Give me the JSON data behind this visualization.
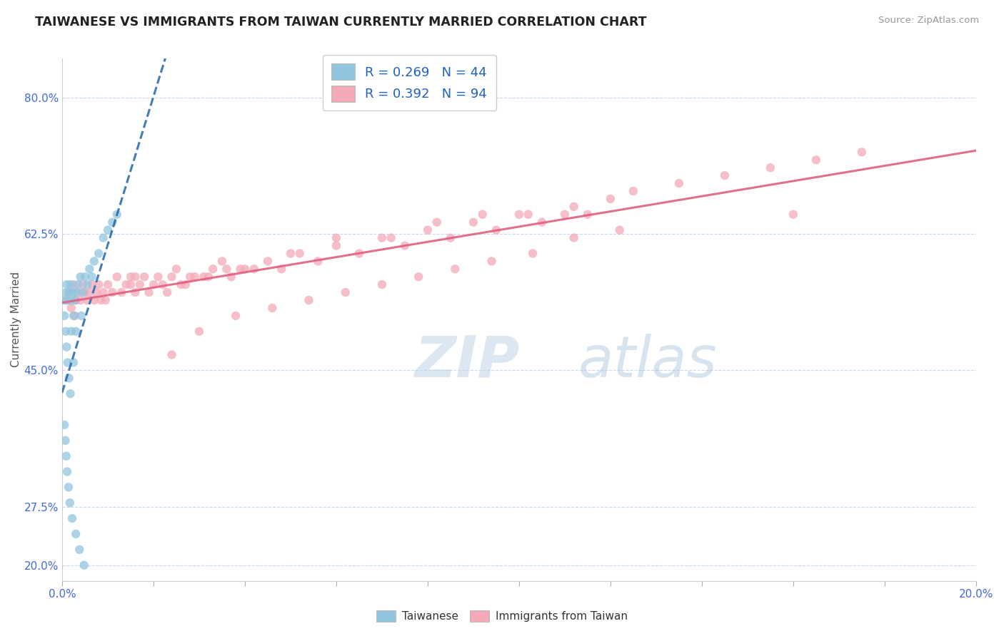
{
  "title": "TAIWANESE VS IMMIGRANTS FROM TAIWAN CURRENTLY MARRIED CORRELATION CHART",
  "source": "Source: ZipAtlas.com",
  "ylabel": "Currently Married",
  "xmin": 0.0,
  "xmax": 20.0,
  "ymin": 18.0,
  "ymax": 85.0,
  "ytick_vals": [
    20.0,
    27.5,
    45.0,
    62.5,
    80.0
  ],
  "ytick_labels": [
    "20.0%",
    "27.5%",
    "45.0%",
    "62.5%",
    "80.0%"
  ],
  "xtick_vals": [
    0.0,
    2.0,
    4.0,
    6.0,
    8.0,
    10.0,
    12.0,
    14.0,
    16.0,
    18.0,
    20.0
  ],
  "legend_r1": "R = 0.269   N = 44",
  "legend_r2": "R = 0.392   N = 94",
  "taiwanese_color": "#92c5de",
  "immigrant_color": "#f4a9b8",
  "taiwanese_line_color": "#2166ac",
  "immigrant_line_color": "#e0607e",
  "watermark_zip_color": "#c5d8e8",
  "watermark_atlas_color": "#a8c8e0",
  "tw_x": [
    0.05,
    0.05,
    0.08,
    0.08,
    0.1,
    0.1,
    0.12,
    0.12,
    0.15,
    0.15,
    0.18,
    0.18,
    0.2,
    0.2,
    0.22,
    0.25,
    0.25,
    0.28,
    0.3,
    0.3,
    0.35,
    0.4,
    0.42,
    0.45,
    0.5,
    0.55,
    0.6,
    0.65,
    0.7,
    0.8,
    0.9,
    1.0,
    1.1,
    1.2,
    0.05,
    0.07,
    0.09,
    0.11,
    0.14,
    0.17,
    0.22,
    0.3,
    0.38,
    0.48
  ],
  "tw_y": [
    54.0,
    52.0,
    55.0,
    50.0,
    56.0,
    48.0,
    54.0,
    46.0,
    55.0,
    44.0,
    56.0,
    42.0,
    54.0,
    50.0,
    55.0,
    52.0,
    46.0,
    54.0,
    55.0,
    50.0,
    56.0,
    57.0,
    52.0,
    55.0,
    57.0,
    56.0,
    58.0,
    57.0,
    59.0,
    60.0,
    62.0,
    63.0,
    64.0,
    65.0,
    38.0,
    36.0,
    34.0,
    32.0,
    30.0,
    28.0,
    26.0,
    24.0,
    22.0,
    20.0
  ],
  "im_x": [
    0.1,
    0.15,
    0.2,
    0.25,
    0.28,
    0.3,
    0.35,
    0.4,
    0.45,
    0.5,
    0.55,
    0.6,
    0.65,
    0.7,
    0.75,
    0.8,
    0.85,
    0.9,
    0.95,
    1.0,
    1.1,
    1.2,
    1.3,
    1.4,
    1.5,
    1.6,
    1.7,
    1.8,
    1.9,
    2.0,
    2.1,
    2.2,
    2.3,
    2.4,
    2.5,
    2.7,
    2.9,
    3.1,
    3.3,
    3.5,
    3.7,
    3.9,
    4.2,
    4.5,
    4.8,
    5.2,
    5.6,
    6.0,
    6.5,
    7.0,
    7.5,
    8.0,
    8.5,
    9.0,
    9.5,
    10.0,
    10.5,
    11.0,
    11.5,
    12.0,
    3.2,
    3.6,
    2.6,
    2.8,
    1.5,
    1.6,
    4.0,
    5.0,
    6.0,
    7.2,
    8.2,
    9.2,
    10.2,
    11.2,
    12.5,
    13.5,
    14.5,
    15.5,
    16.5,
    17.5,
    2.4,
    3.0,
    3.8,
    4.6,
    5.4,
    6.2,
    7.0,
    7.8,
    8.6,
    9.4,
    10.3,
    11.2,
    12.2,
    16.0
  ],
  "im_y": [
    54.0,
    55.0,
    53.0,
    56.0,
    52.0,
    54.0,
    55.0,
    54.0,
    56.0,
    55.0,
    54.0,
    55.0,
    56.0,
    54.0,
    55.0,
    56.0,
    54.0,
    55.0,
    54.0,
    56.0,
    55.0,
    57.0,
    55.0,
    56.0,
    57.0,
    55.0,
    56.0,
    57.0,
    55.0,
    56.0,
    57.0,
    56.0,
    55.0,
    57.0,
    58.0,
    56.0,
    57.0,
    57.0,
    58.0,
    59.0,
    57.0,
    58.0,
    58.0,
    59.0,
    58.0,
    60.0,
    59.0,
    61.0,
    60.0,
    62.0,
    61.0,
    63.0,
    62.0,
    64.0,
    63.0,
    65.0,
    64.0,
    65.0,
    65.0,
    67.0,
    57.0,
    58.0,
    56.0,
    57.0,
    56.0,
    57.0,
    58.0,
    60.0,
    62.0,
    62.0,
    64.0,
    65.0,
    65.0,
    66.0,
    68.0,
    69.0,
    70.0,
    71.0,
    72.0,
    73.0,
    47.0,
    50.0,
    52.0,
    53.0,
    54.0,
    55.0,
    56.0,
    57.0,
    58.0,
    59.0,
    60.0,
    62.0,
    63.0,
    65.0
  ]
}
